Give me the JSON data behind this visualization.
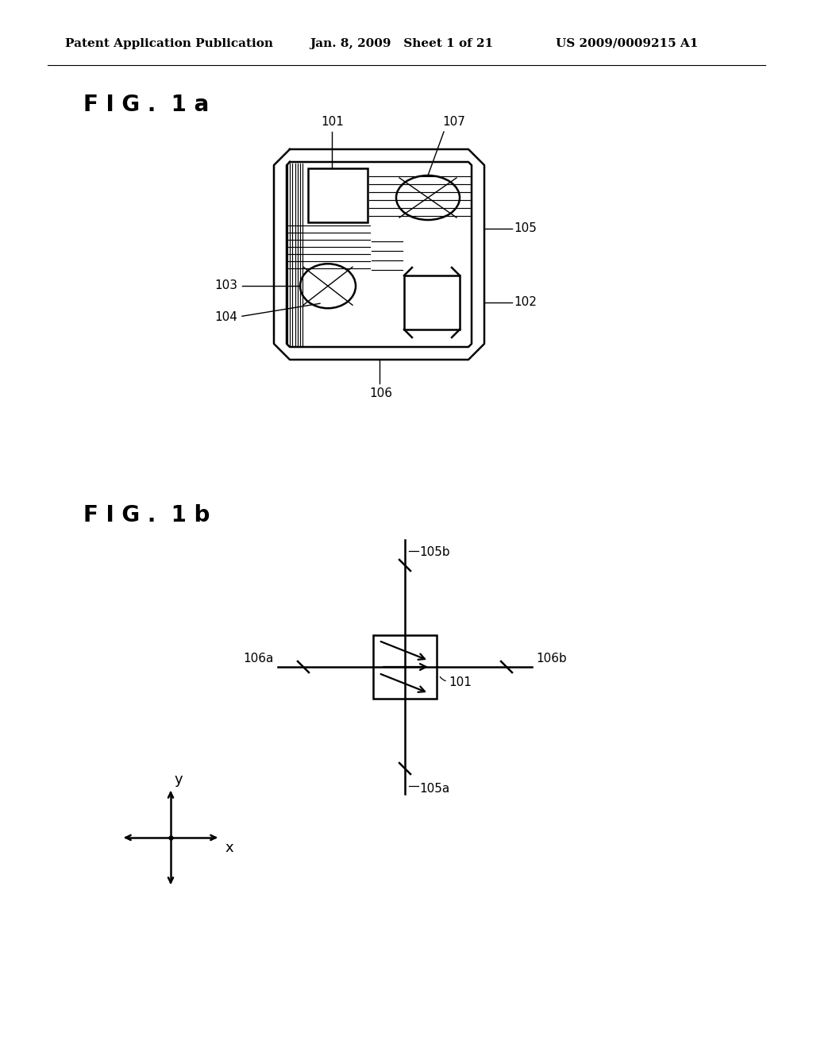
{
  "header_left": "Patent Application Publication",
  "header_center": "Jan. 8, 2009   Sheet 1 of 21",
  "header_right": "US 2009/0009215 A1",
  "fig1a_label": "F I G .  1 a",
  "fig1b_label": "F I G .  1 b",
  "bg_color": "#ffffff",
  "line_color": "#000000",
  "header_fontsize": 11,
  "fig_label_fontsize": 20
}
